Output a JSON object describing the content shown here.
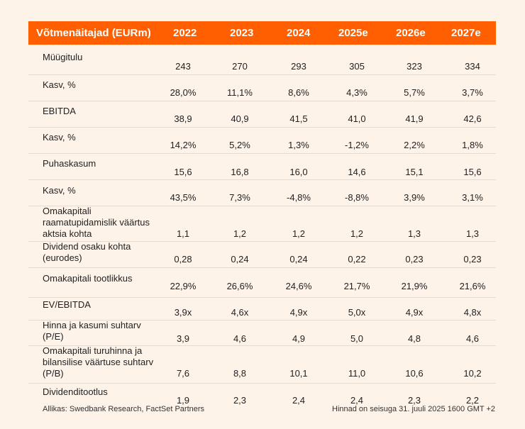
{
  "header": {
    "title": "Võtmenäitajad (EURm)",
    "years": [
      "2022",
      "2023",
      "2024",
      "2025e",
      "2026e",
      "2027e"
    ]
  },
  "rows": [
    {
      "label": "Müügitulu",
      "values": [
        "243",
        "270",
        "293",
        "305",
        "323",
        "334"
      ]
    },
    {
      "label": "Kasv, %",
      "values": [
        "28,0%",
        "11,1%",
        "8,6%",
        "4,3%",
        "5,7%",
        "3,7%"
      ]
    },
    {
      "label": "EBITDA",
      "values": [
        "38,9",
        "40,9",
        "41,5",
        "41,0",
        "41,9",
        "42,6"
      ]
    },
    {
      "label": "Kasv, %",
      "values": [
        "14,2%",
        "5,2%",
        "1,3%",
        "-1,2%",
        "2,2%",
        "1,8%"
      ]
    },
    {
      "label": "Puhaskasum",
      "values": [
        "15,6",
        "16,8",
        "16,0",
        "14,6",
        "15,1",
        "15,6"
      ]
    },
    {
      "label": "Kasv, %",
      "values": [
        "43,5%",
        "7,3%",
        "-4,8%",
        "-8,8%",
        "3,9%",
        "3,1%"
      ]
    },
    {
      "label": "Omakapitali\nraamatupidamislik väärtus\naktsia kohta",
      "values": [
        "1,1",
        "1,2",
        "1,2",
        "1,2",
        "1,3",
        "1,3"
      ]
    },
    {
      "label": "Dividend osaku kohta\n(eurodes)",
      "values": [
        "0,28",
        "0,24",
        "0,24",
        "0,22",
        "0,23",
        "0,23"
      ]
    },
    {
      "label": "Omakapitali tootlikkus",
      "values": [
        "22,9%",
        "26,6%",
        "24,6%",
        "21,7%",
        "21,9%",
        "21,6%"
      ]
    },
    {
      "label": "EV/EBITDA",
      "values": [
        "3,9x",
        "4,6x",
        "4,9x",
        "5,0x",
        "4,9x",
        "4,8x"
      ]
    },
    {
      "label": "Hinna ja kasumi suhtarv\n(P/E)",
      "values": [
        "3,9",
        "4,6",
        "4,9",
        "5,0",
        "4,8",
        "4,6"
      ]
    },
    {
      "label": "Omakapitali turuhinna ja\nbilansilise väärtuse suhtarv\n(P/B)",
      "values": [
        "7,6",
        "8,8",
        "10,1",
        "11,0",
        "10,6",
        "10,2"
      ]
    },
    {
      "label": "Dividenditootlus",
      "values": [
        "1,9",
        "2,3",
        "2,4",
        "2,4",
        "2,3",
        "2,2"
      ]
    }
  ],
  "footer": {
    "source": "Allikas: Swedbank Research, FactSet Partners",
    "note": "Hinnad on seisuga 31. juuli 2025 1600 GMT +2"
  }
}
